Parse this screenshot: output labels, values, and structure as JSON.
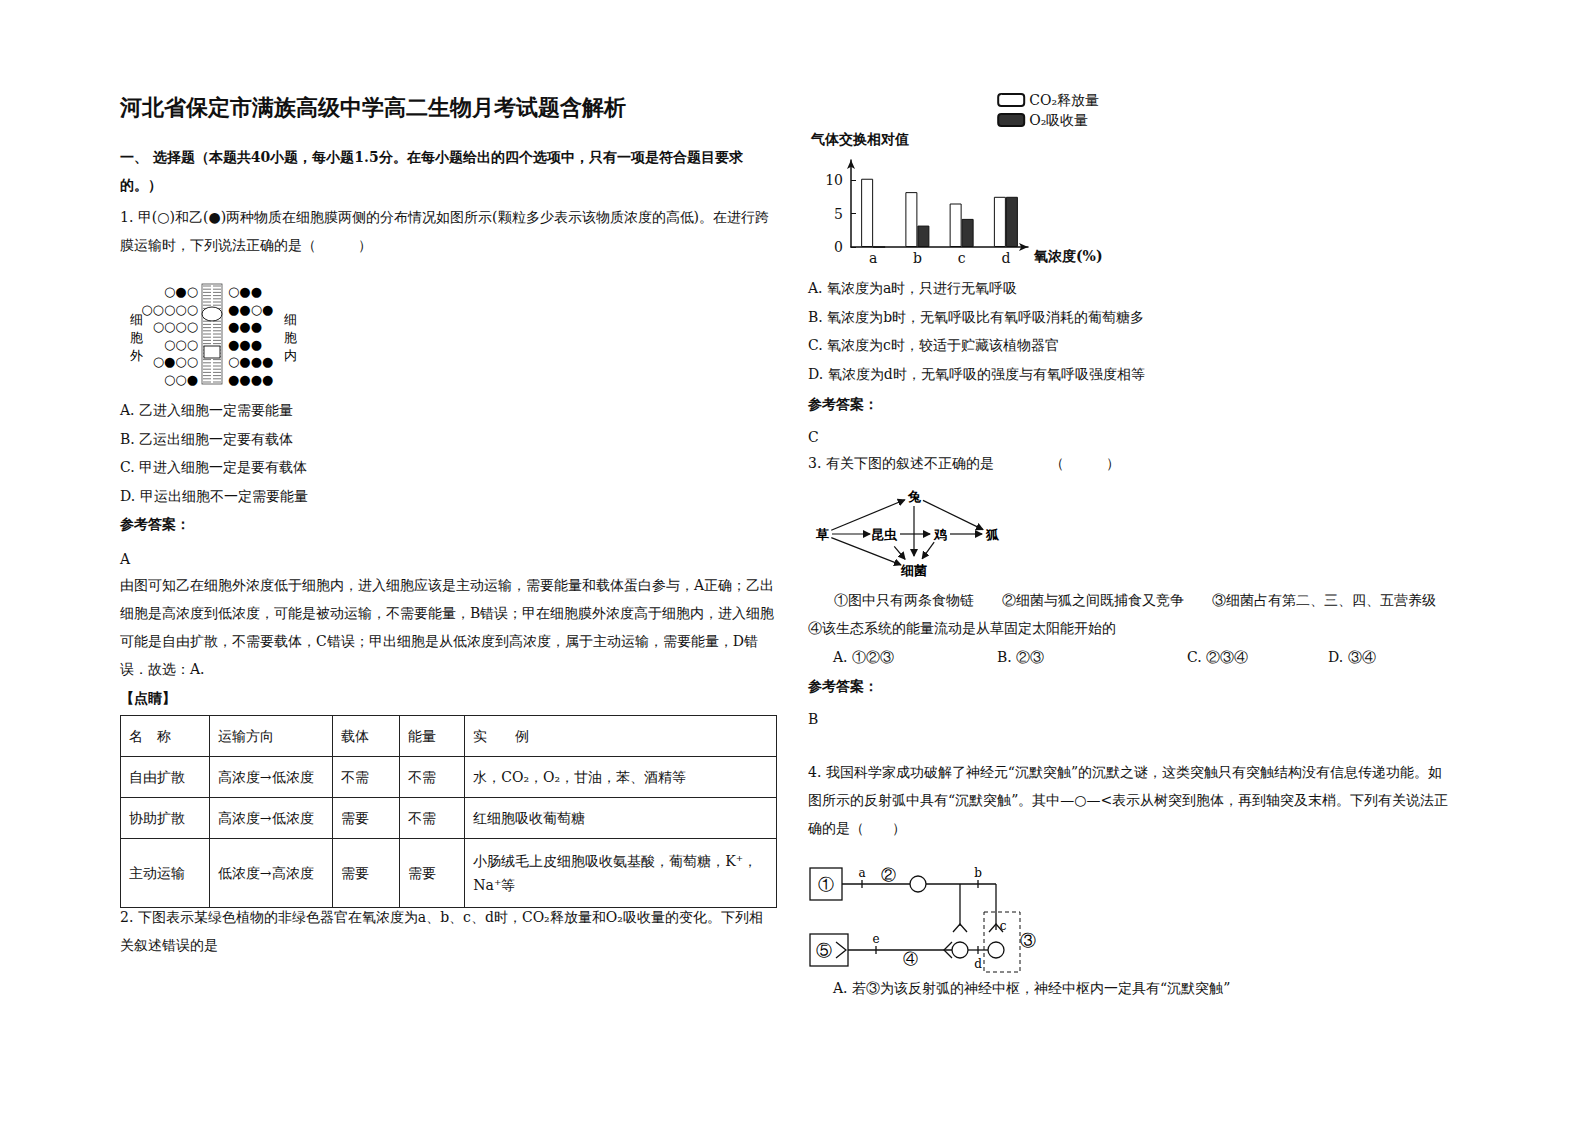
{
  "chart_data": {
    "type": "bar",
    "y_label": "气体交换相对值",
    "x_label": "氧浓度(%)",
    "categories": [
      "a",
      "b",
      "c",
      "d"
    ],
    "series": [
      {
        "name": "CO₂释放量",
        "color": "#ffffff",
        "values": [
          10.2,
          8.2,
          6.5,
          7.5
        ]
      },
      {
        "name": "O₂吸收量",
        "color": "#333333",
        "values": [
          0,
          3.2,
          4.2,
          7.5
        ]
      }
    ],
    "ylim": [
      0,
      13
    ],
    "yticks": [
      0,
      5,
      10
    ],
    "grid": false,
    "legend": "top-right"
  },
  "document": {
    "title": "河北省保定市满族高级中学高二生物月考试题含解析",
    "section": "一、 选择题（本题共40小题，每小题1.5分。在每小题给出的四个选项中，只有一项是符合题目要求的。）",
    "q1": {
      "stem": "1. 甲(○)和乙(●)两种物质在细胞膜两侧的分布情况如图所示(颗粒多少表示该物质浓度的高低)。在进行跨膜运输时，下列说法正确的是（　　　）",
      "figure": {
        "outside_label": "细胞外",
        "inside_label": "细胞内",
        "outside_rows": [
          "○●○",
          "○○○○○",
          "○○○○",
          "○○○",
          "○●○○",
          "○○●"
        ],
        "inside_rows": [
          "○●●",
          "●●○●",
          "●●●",
          "●●●",
          "○●●●",
          "●●●●"
        ]
      },
      "options": [
        "A.  乙进入细胞一定需要能量",
        "B.  乙运出细胞一定要有载体",
        "C.  甲进入细胞一定是要有载体",
        "D.  甲运出细胞不一定需要能量"
      ],
      "answer_label": "参考答案：",
      "answer": "A",
      "explanation": "由图可知乙在细胞外浓度低于细胞内，进入细胞应该是主动运输，需要能量和载体蛋白参与，A正确；乙出细胞是高浓度到低浓度，可能是被动运输，不需要能量，B错误；甲在细胞膜外浓度高于细胞内，进入细胞可能是自由扩散，不需要载体，C错误；甲出细胞是从低浓度到高浓度，属于主动运输，需要能量，D错误．故选：A.",
      "tip_label": "【点睛】",
      "table": {
        "header": [
          "名　称",
          "运输方向",
          "载体",
          "能量",
          "实　　例"
        ],
        "rows": [
          [
            "自由扩散",
            "高浓度→低浓度",
            "不需",
            "不需",
            "水，CO₂，O₂，甘油，苯、酒精等"
          ],
          [
            "协助扩散",
            "高浓度→低浓度",
            "需要",
            "不需",
            "红细胞吸收葡萄糖"
          ],
          [
            "主动运输",
            "低浓度→高浓度",
            "需要",
            "需要",
            "小肠绒毛上皮细胞吸收氨基酸，葡萄糖，K⁺，Na⁺等"
          ]
        ]
      }
    },
    "q2": {
      "stem": "2. 下图表示某绿色植物的非绿色器官在氧浓度为a、b、c、d时，CO₂释放量和O₂吸收量的变化。下列相关叙述错误的是",
      "options": [
        "A. 氧浓度为a时，只进行无氧呼吸",
        "B. 氧浓度为b时，无氧呼吸比有氧呼吸消耗的葡萄糖多",
        "C. 氧浓度为c时，较适于贮藏该植物器官",
        "D. 氧浓度为d时，无氧呼吸的强度与有氧呼吸强度相等"
      ],
      "answer_label": "参考答案：",
      "answer": "C"
    },
    "q3": {
      "stem": "3. 有关下图的叙述不正确的是　　　　（　　　）",
      "figure": {
        "grass": "草",
        "rabbit": "兔",
        "insect": "昆虫",
        "chicken": "鸡",
        "fox": "狐",
        "bacteria": "细菌"
      },
      "statements": "①图中只有两条食物链　　②细菌与狐之间既捕食又竞争　　③细菌占有第二、三、四、五营养级　④该生态系统的能量流动是从草固定太阳能开始的",
      "options": [
        "A. ①②③",
        "B. ②③",
        "C. ②③④",
        "D. ③④"
      ],
      "answer_label": "参考答案：",
      "answer": "B"
    },
    "q4": {
      "stem": "4. 我国科学家成功破解了神经元“沉默突触”的沉默之谜，这类突触只有突触结构没有信息传递功能。如图所示的反射弧中具有“沉默突触”。其中—○—<表示从树突到胞体，再到轴突及末梢。下列有关说法正确的是（　　）",
      "figure": {
        "receptor": "①",
        "afferent": "②",
        "center": "③",
        "efferent": "④",
        "effector": "⑤",
        "a": "a",
        "b": "b",
        "c": "c",
        "d": "d",
        "e": "e"
      },
      "options": [
        "A. 若③为该反射弧的神经中枢，神经中枢内一定具有“沉默突触”"
      ]
    }
  }
}
